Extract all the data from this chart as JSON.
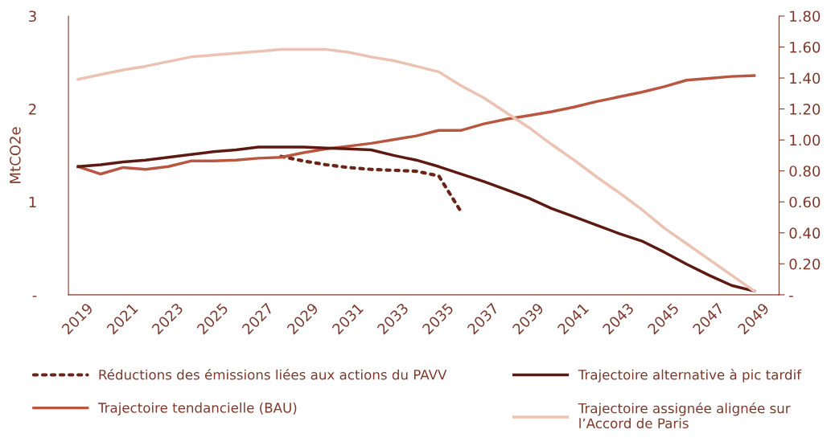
{
  "chart_data": {
    "type": "line",
    "ylabel": "MtCO2e",
    "x": [
      2019,
      2020,
      2021,
      2022,
      2023,
      2024,
      2025,
      2026,
      2027,
      2028,
      2029,
      2030,
      2031,
      2032,
      2033,
      2034,
      2035,
      2036,
      2037,
      2038,
      2039,
      2040,
      2041,
      2042,
      2043,
      2044,
      2045,
      2046,
      2047,
      2048,
      2049
    ],
    "xlim": [
      2018.57,
      2050.1
    ],
    "xticks": [
      2019,
      2021,
      2023,
      2025,
      2027,
      2029,
      2031,
      2033,
      2035,
      2037,
      2039,
      2041,
      2043,
      2045,
      2047,
      2049
    ],
    "ylim": [
      0,
      3
    ],
    "yticks": [
      {
        "value": 0,
        "label": "-"
      },
      1,
      2,
      3
    ],
    "y2lim": [
      0,
      1.8
    ],
    "y2ticks": [
      {
        "value": 0,
        "label": "-"
      },
      {
        "value": 0.2,
        "label": "0.20"
      },
      {
        "value": 0.4,
        "label": "0.40"
      },
      {
        "value": 0.6,
        "label": "0.60"
      },
      {
        "value": 0.8,
        "label": "0.80"
      },
      {
        "value": 1.0,
        "label": "1.00"
      },
      {
        "value": 1.2,
        "label": "1.20"
      },
      {
        "value": 1.4,
        "label": "1.40"
      },
      {
        "value": 1.6,
        "label": "1.60"
      },
      {
        "value": 1.8,
        "label": "1.80"
      }
    ],
    "grid": false,
    "legend": "bottom",
    "marker": "none",
    "series": [
      {
        "name": "Réductions des émissions liées aux actions du PAVV",
        "color": "#6b2418",
        "line_style": "dotted",
        "values": [
          null,
          null,
          null,
          null,
          null,
          null,
          null,
          null,
          null,
          1.49,
          1.44,
          1.4,
          1.37,
          1.35,
          1.34,
          1.33,
          1.28,
          0.89,
          null,
          null,
          null,
          null,
          null,
          null,
          null,
          null,
          null,
          null,
          null,
          null,
          null
        ]
      },
      {
        "name": "Trajectoire tendancielle (BAU)",
        "color": "#b85640",
        "line_style": "solid",
        "values": [
          1.38,
          1.3,
          1.37,
          1.35,
          1.38,
          1.44,
          1.44,
          1.45,
          1.47,
          1.48,
          1.53,
          1.57,
          1.6,
          1.63,
          1.67,
          1.71,
          1.77,
          1.77,
          1.84,
          1.89,
          1.93,
          1.97,
          2.02,
          2.08,
          2.13,
          2.18,
          2.24,
          2.31,
          2.33,
          2.35,
          2.36
        ]
      },
      {
        "name": "Trajectoire alternative à pic tardif",
        "color": "#5c1a12",
        "line_style": "solid",
        "values": [
          1.38,
          1.4,
          1.43,
          1.45,
          1.48,
          1.51,
          1.54,
          1.56,
          1.59,
          1.59,
          1.59,
          1.58,
          1.57,
          1.56,
          1.5,
          1.45,
          1.38,
          1.3,
          1.22,
          1.13,
          1.04,
          0.93,
          0.84,
          0.75,
          0.66,
          0.58,
          0.46,
          0.33,
          0.21,
          0.1,
          0.04
        ]
      },
      {
        "name": "Trajectoire assignée alignée sur\nl’Accord de Paris",
        "color": "#ecc3b2",
        "line_style": "solid",
        "values": [
          2.32,
          2.37,
          2.42,
          2.46,
          2.51,
          2.56,
          2.58,
          2.6,
          2.62,
          2.64,
          2.64,
          2.64,
          2.61,
          2.56,
          2.52,
          2.46,
          2.4,
          2.25,
          2.12,
          1.96,
          1.8,
          1.62,
          1.45,
          1.27,
          1.1,
          0.92,
          0.72,
          0.55,
          0.38,
          0.21,
          0.04
        ]
      }
    ]
  }
}
